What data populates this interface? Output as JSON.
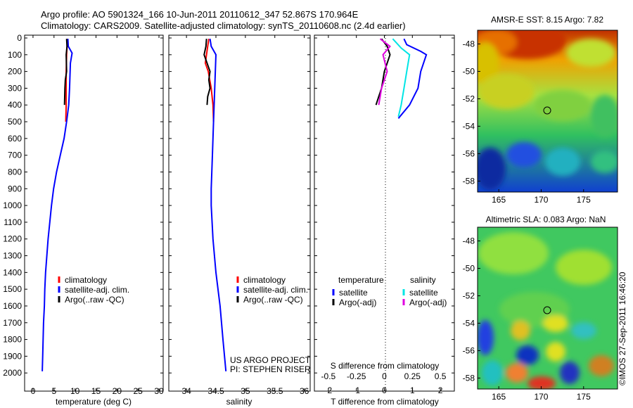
{
  "title_line1": "Argo profile: AO 5901324_166 10-Jun-2011 20110612_347 52.867S 170.964E",
  "title_line2": "Climatology: CARS2009. Satellite-adjusted climatology: synTS_20110608.nc (2.4d earlier)",
  "credit_line1": "US ARGO PROJECT",
  "credit_line2": "PI: STEPHEN RISER",
  "watermark": "©IMOS 27-Sep-2011 16:46:20",
  "colors": {
    "climatology": "#ff0000",
    "satellite": "#0000ff",
    "argo": "#000000",
    "sat_salinity": "#00e5e5",
    "argo_salinity": "#e000e0"
  },
  "chart_data": [
    {
      "type": "line",
      "id": "temperature",
      "xlabel": "temperature (deg C)",
      "ylabel": "",
      "xlim": [
        -2,
        31
      ],
      "ylim": [
        2100,
        0
      ],
      "xticks": [
        0,
        5,
        10,
        15,
        20,
        25,
        30
      ],
      "yticks": [
        0,
        100,
        200,
        300,
        400,
        500,
        600,
        700,
        800,
        900,
        1000,
        1100,
        1200,
        1300,
        1400,
        1500,
        1600,
        1700,
        1800,
        1900,
        2000
      ],
      "legend": [
        "climatology",
        "satellite-adj. clim.",
        "Argo(..raw -QC)"
      ],
      "series": [
        {
          "name": "climatology",
          "color_key": "climatology",
          "points": [
            [
              8.2,
              5
            ],
            [
              8.1,
              50
            ],
            [
              8,
              100
            ],
            [
              7.9,
              200
            ],
            [
              7.9,
              300
            ],
            [
              7.9,
              400
            ],
            [
              7.8,
              500
            ]
          ]
        },
        {
          "name": "satellite-adj. clim.",
          "color_key": "satellite",
          "points": [
            [
              8.3,
              5
            ],
            [
              8.4,
              50
            ],
            [
              9.3,
              90
            ],
            [
              8.9,
              150
            ],
            [
              8.7,
              300
            ],
            [
              8.5,
              400
            ],
            [
              8,
              500
            ],
            [
              7.4,
              600
            ],
            [
              6.5,
              700
            ],
            [
              5.6,
              800
            ],
            [
              4.9,
              900
            ],
            [
              4.4,
              1000
            ],
            [
              4,
              1100
            ],
            [
              3.6,
              1200
            ],
            [
              3.3,
              1300
            ],
            [
              3,
              1400
            ],
            [
              2.8,
              1500
            ],
            [
              2.7,
              1600
            ],
            [
              2.5,
              1700
            ],
            [
              2.4,
              1800
            ],
            [
              2.3,
              1900
            ],
            [
              2.2,
              1990
            ]
          ]
        },
        {
          "name": "Argo(..raw -QC)",
          "color_key": "argo",
          "points": [
            [
              8,
              5
            ],
            [
              8.1,
              50
            ],
            [
              7.9,
              100
            ],
            [
              8,
              200
            ],
            [
              7.7,
              250
            ],
            [
              7.6,
              300
            ],
            [
              7.5,
              400
            ]
          ]
        }
      ]
    },
    {
      "type": "line",
      "id": "salinity",
      "xlabel": "salinity",
      "ylabel": "",
      "xlim": [
        33.7,
        36.1
      ],
      "ylim": [
        2100,
        0
      ],
      "xticks": [
        34,
        34.5,
        35,
        35.5,
        36
      ],
      "xticklabels": [
        "34",
        "34.5",
        "35",
        "35.5",
        "36"
      ],
      "legend": [
        "climatology",
        "satellite-adj. clim.",
        "Argo(..raw -QC)"
      ],
      "series": [
        {
          "name": "climatology",
          "color_key": "climatology",
          "points": [
            [
              34.38,
              5
            ],
            [
              34.36,
              50
            ],
            [
              34.34,
              100
            ],
            [
              34.32,
              150
            ],
            [
              34.37,
              200
            ],
            [
              34.42,
              300
            ],
            [
              34.45,
              400
            ],
            [
              34.46,
              500
            ]
          ]
        },
        {
          "name": "satellite-adj. clim.",
          "color_key": "satellite",
          "points": [
            [
              34.4,
              5
            ],
            [
              34.42,
              50
            ],
            [
              34.5,
              100
            ],
            [
              34.48,
              300
            ],
            [
              34.46,
              500
            ],
            [
              34.44,
              700
            ],
            [
              34.42,
              900
            ],
            [
              34.42,
              1000
            ],
            [
              34.45,
              1200
            ],
            [
              34.5,
              1400
            ],
            [
              34.57,
              1600
            ],
            [
              34.62,
              1800
            ],
            [
              34.67,
              1990
            ]
          ]
        },
        {
          "name": "Argo(..raw -QC)",
          "color_key": "argo",
          "points": [
            [
              34.34,
              5
            ],
            [
              34.33,
              50
            ],
            [
              34.3,
              100
            ],
            [
              34.35,
              150
            ],
            [
              34.4,
              200
            ],
            [
              34.38,
              250
            ],
            [
              34.4,
              300
            ],
            [
              34.36,
              350
            ],
            [
              34.35,
              400
            ]
          ]
        }
      ]
    },
    {
      "type": "line",
      "id": "difference",
      "xlabel": "T difference from climatology",
      "xlabel2": "S difference from climatology",
      "xlim": [
        -2.5,
        2.5
      ],
      "ylim": [
        2100,
        0
      ],
      "xticks": [
        -2,
        -1,
        0,
        1,
        2
      ],
      "sticks": [
        -0.5,
        -0.25,
        0,
        0.25,
        0.5
      ],
      "sticklabels": [
        "-0.5",
        "-0.25",
        "0",
        "0.25",
        "0.5"
      ],
      "legend_temperature": {
        "header": "temperature",
        "items": [
          "satellite",
          "Argo(-adj)"
        ]
      },
      "legend_salinity": {
        "header": "salinity",
        "items": [
          "satellite",
          "Argo(-adj)"
        ]
      },
      "series": [
        {
          "name": "temperature satellite",
          "color_key": "satellite",
          "points": [
            [
              0.7,
              5
            ],
            [
              0.8,
              40
            ],
            [
              1.3,
              80
            ],
            [
              1.5,
              100
            ],
            [
              1.3,
              200
            ],
            [
              1.2,
              300
            ],
            [
              0.9,
              400
            ],
            [
              0.5,
              480
            ]
          ]
        },
        {
          "name": "salinity satellite",
          "color_key": "sat_salinity",
          "points": [
            [
              0.3,
              5
            ],
            [
              0.6,
              60
            ],
            [
              0.9,
              100
            ],
            [
              0.8,
              200
            ],
            [
              0.7,
              300
            ],
            [
              0.6,
              400
            ],
            [
              0.5,
              470
            ]
          ]
        },
        {
          "name": "temperature Argo(-adj)",
          "color_key": "argo",
          "points": [
            [
              -0.1,
              5
            ],
            [
              0.1,
              50
            ],
            [
              0.2,
              100
            ],
            [
              0,
              200
            ],
            [
              -0.1,
              300
            ],
            [
              -0.2,
              350
            ],
            [
              -0.3,
              400
            ]
          ]
        },
        {
          "name": "salinity Argo(-adj)",
          "color_key": "argo_salinity",
          "points": [
            [
              -0.15,
              5
            ],
            [
              0.2,
              50
            ],
            [
              -0.05,
              100
            ],
            [
              0.1,
              200
            ],
            [
              -0.1,
              300
            ],
            [
              -0.15,
              350
            ],
            [
              -0.2,
              400
            ]
          ]
        }
      ]
    },
    {
      "type": "heatmap",
      "id": "map_sst",
      "title": "AMSR-E SST: 8.15 Argo: 7.82",
      "xlim": [
        162.5,
        179
      ],
      "ylim": [
        -58.8,
        -47
      ],
      "xticks": [
        165,
        170,
        175
      ],
      "yticks": [
        -48,
        -50,
        -52,
        -54,
        -56,
        -58
      ],
      "yticklabels": [
        "-48",
        "-50",
        "-52",
        "-54",
        "-56",
        "-58"
      ],
      "marker": [
        171,
        -52.9
      ]
    },
    {
      "type": "heatmap",
      "id": "map_sla",
      "title": "Altimetric SLA: 0.083 Argo: NaN",
      "xlim": [
        162.5,
        179
      ],
      "ylim": [
        -58.8,
        -47
      ],
      "xticks": [
        165,
        170,
        175
      ],
      "yticks": [
        -48,
        -50,
        -52,
        -54,
        -56,
        -58
      ],
      "yticklabels": [
        "-48",
        "-50",
        "-52",
        "-54",
        "-56",
        "-58"
      ],
      "marker": [
        171,
        -52.9
      ]
    }
  ]
}
